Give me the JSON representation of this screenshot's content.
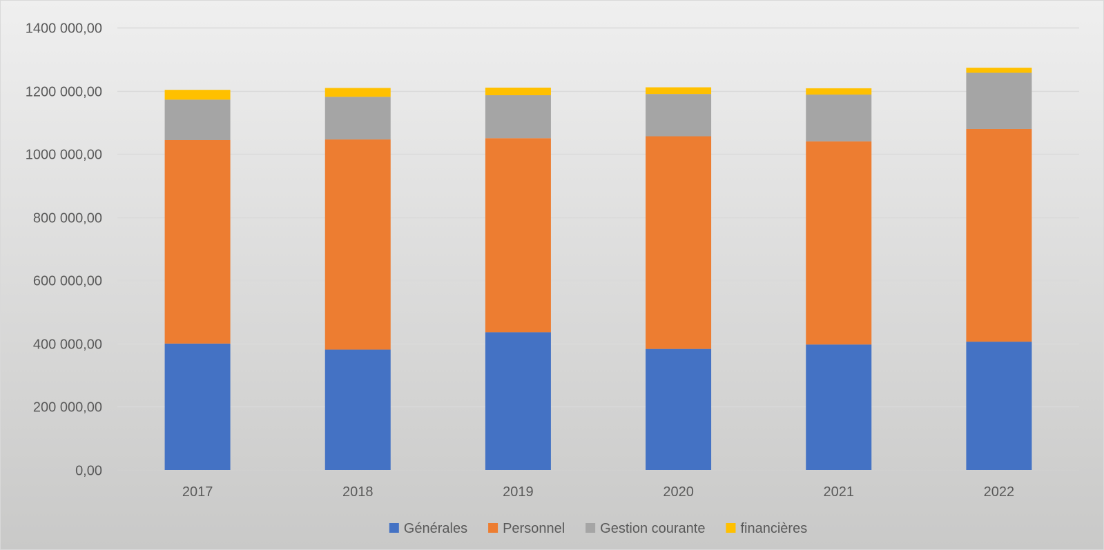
{
  "chart_data": {
    "type": "bar",
    "stacked": true,
    "title": "",
    "xlabel": "",
    "ylabel": "",
    "categories": [
      "2017",
      "2018",
      "2019",
      "2020",
      "2021",
      "2022"
    ],
    "ylim": [
      0,
      1400000
    ],
    "y_ticks": [
      0,
      200000,
      400000,
      600000,
      800000,
      1000000,
      1200000,
      1400000
    ],
    "y_tick_labels": [
      "0,00",
      "200 000,00",
      "400 000,00",
      "600 000,00",
      "800 000,00",
      "1000 000,00",
      "1200 000,00",
      "1400 000,00"
    ],
    "grid": true,
    "legend_position": "bottom",
    "series": [
      {
        "name": "Générales",
        "color": "#4472C4",
        "values": [
          400000,
          381000,
          436000,
          383000,
          397000,
          406000
        ]
      },
      {
        "name": "Personnel",
        "color": "#ED7D31",
        "values": [
          644000,
          665000,
          614000,
          673000,
          643000,
          673000
        ]
      },
      {
        "name": "Gestion courante",
        "color": "#A5A5A5",
        "values": [
          128000,
          135000,
          136000,
          134000,
          148000,
          178000
        ]
      },
      {
        "name": "financières",
        "color": "#FFC000",
        "values": [
          31000,
          28000,
          24000,
          21000,
          20000,
          16000
        ]
      }
    ]
  }
}
